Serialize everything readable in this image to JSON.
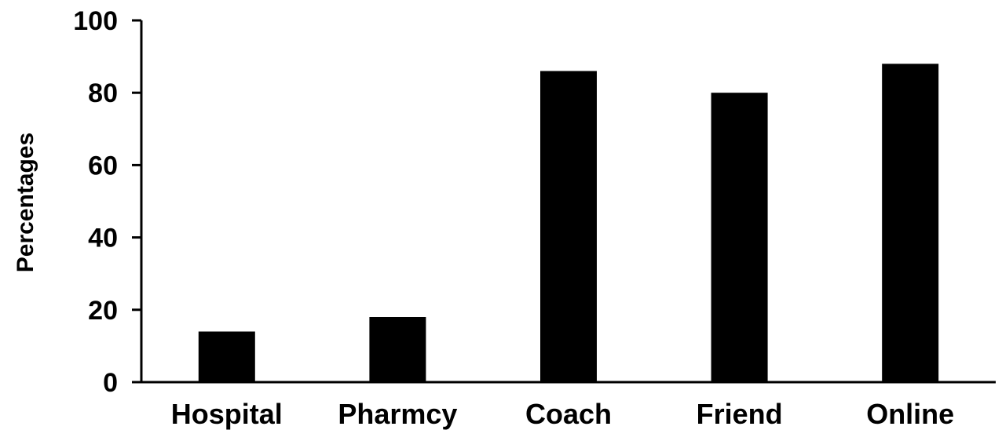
{
  "chart_data": {
    "type": "bar",
    "title": "",
    "xlabel": "",
    "ylabel": "Percentages",
    "categories": [
      "Hospital",
      "Pharmcy",
      "Coach",
      "Friend",
      "Online"
    ],
    "values": [
      14,
      18,
      86,
      80,
      88
    ],
    "ylim": [
      0,
      100
    ],
    "yticks": [
      "0",
      "20",
      "40",
      "60",
      "80",
      "100"
    ],
    "grid": false,
    "legend": "none",
    "bar_color": "#000000",
    "axis_color": "#000000"
  }
}
